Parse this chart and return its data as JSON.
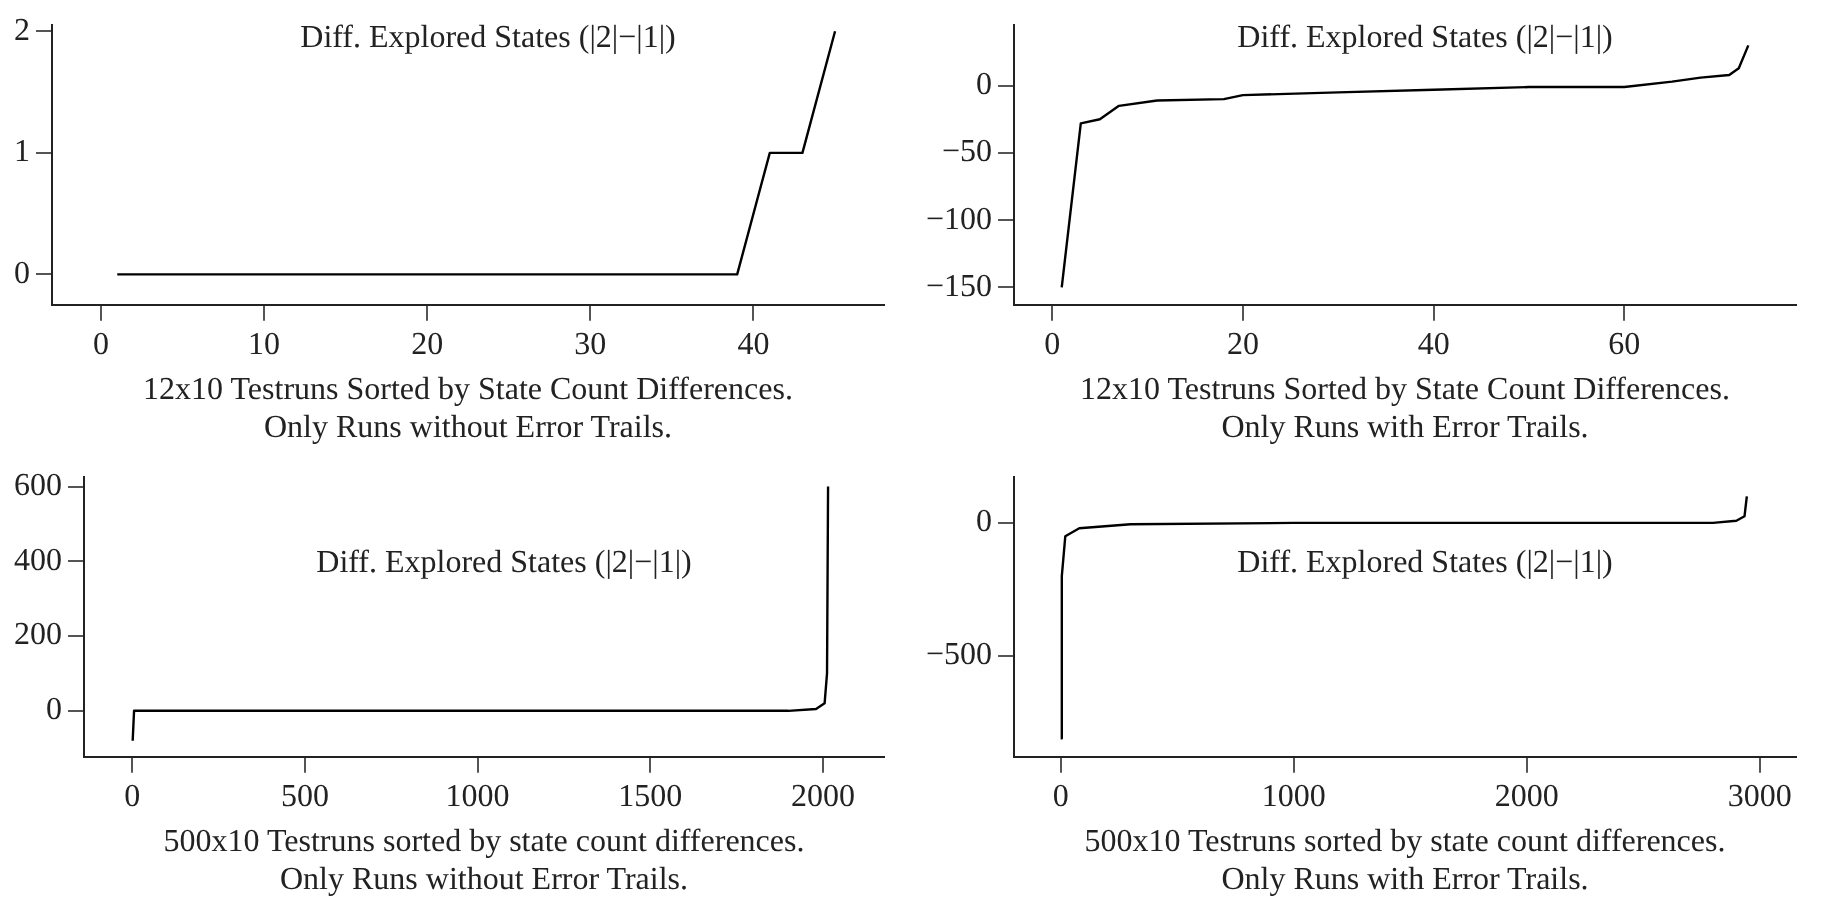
{
  "chart_data": [
    {
      "type": "line",
      "title": "Diff. Explored States (|2|−|1|)",
      "xlabel": "12x10 Testruns Sorted by State Count Differences.",
      "annotations": [
        "Only Runs without Error Trails."
      ],
      "x": [
        1,
        39,
        41,
        43,
        45
      ],
      "series": [
        {
          "color": "#000000",
          "values": [
            0,
            0,
            1,
            1,
            2
          ]
        }
      ],
      "xlim": [
        -3,
        48
      ],
      "xticks": [
        0,
        10,
        20,
        30,
        40
      ],
      "ylim": [
        -0.25,
        2.05
      ],
      "yticks": [
        0,
        1,
        2
      ],
      "grid": false,
      "legend": false,
      "marker": "none"
    },
    {
      "type": "line",
      "title": "Diff. Explored States (|2|−|1|)",
      "xlabel": "12x10 Testruns Sorted by State Count Differences.",
      "annotations": [
        "Only Runs with Error Trails."
      ],
      "x": [
        1,
        3,
        5,
        7,
        11,
        18,
        20,
        30,
        40,
        50,
        60,
        65,
        68,
        71,
        72,
        73
      ],
      "series": [
        {
          "color": "#000000",
          "values": [
            -150,
            -28,
            -25,
            -15,
            -11,
            -10,
            -7,
            -5,
            -3,
            -1,
            -1,
            3,
            6,
            8,
            13,
            30
          ]
        }
      ],
      "xlim": [
        -4,
        78
      ],
      "xticks": [
        0,
        20,
        40,
        60
      ],
      "ylim": [
        -163,
        45
      ],
      "yticks": [
        -150,
        -100,
        -50,
        0
      ],
      "grid": false,
      "legend": false,
      "marker": "none"
    },
    {
      "type": "line",
      "title": "Diff. Explored States (|2|−|1|)",
      "xlabel": "500x10 Testruns sorted by state count differences.",
      "annotations": [
        "Only Runs without Error Trails."
      ],
      "x": [
        1,
        5,
        1900,
        1980,
        2005,
        2012,
        2015
      ],
      "series": [
        {
          "color": "#000000",
          "values": [
            -80,
            0,
            0,
            5,
            20,
            100,
            600
          ]
        }
      ],
      "xlim": [
        -140,
        2177
      ],
      "xticks": [
        0,
        500,
        1000,
        1500,
        2000
      ],
      "ylim": [
        -123,
        625
      ],
      "yticks": [
        0,
        200,
        400,
        600
      ],
      "grid": false,
      "legend": false,
      "marker": "none"
    },
    {
      "type": "line",
      "title": "Diff. Explored States (|2|−|1|)",
      "xlabel": "500x10 Testruns sorted by state count differences.",
      "annotations": [
        "Only Runs with Error Trails."
      ],
      "x": [
        0,
        5,
        20,
        80,
        300,
        1000,
        2800,
        2900,
        2935,
        2945
      ],
      "series": [
        {
          "color": "#000000",
          "values": [
            -810,
            -200,
            -50,
            -20,
            -5,
            0,
            0,
            8,
            25,
            100
          ]
        }
      ],
      "xlim": [
        -200,
        3156
      ],
      "xticks": [
        0,
        1000,
        2000,
        3000
      ],
      "ylim": [
        -880,
        172
      ],
      "yticks": [
        -500,
        0
      ],
      "grid": false,
      "legend": false,
      "marker": "none"
    }
  ]
}
